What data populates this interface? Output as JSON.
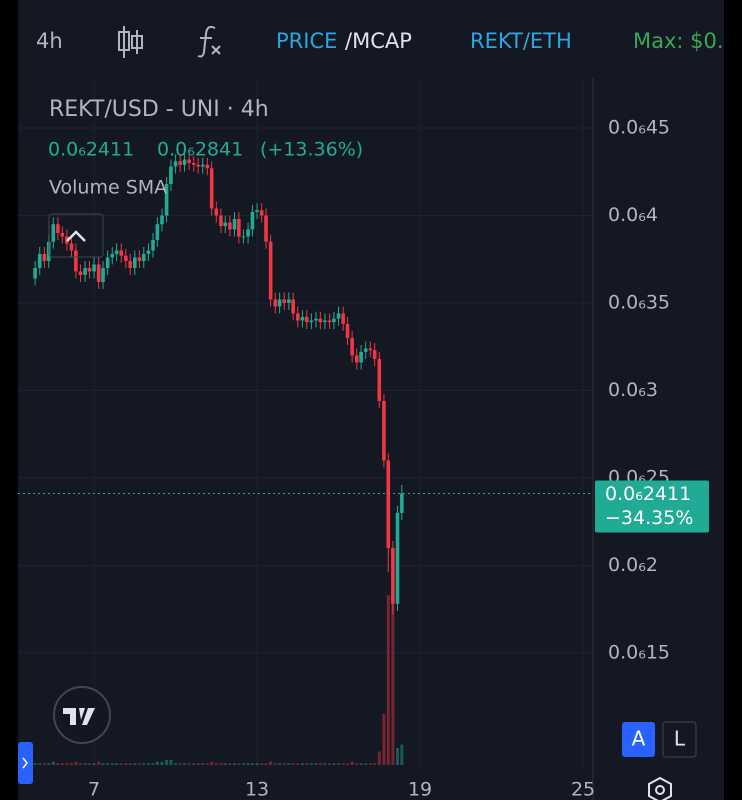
{
  "toolbar": {
    "interval": "4h",
    "price": "PRICE",
    "mcap": "/MCAP",
    "pair": "REKT/ETH",
    "max": "Max: $0."
  },
  "legend": {
    "title": "REKT/USD - UNI · 4h",
    "values": [
      "0.0₆2411",
      "0.0₆2841",
      "(+13.36%)"
    ],
    "indicator": "Volume SMA"
  },
  "buttons": {
    "auto": "A",
    "log": "L"
  },
  "chart_data": {
    "type": "candlestick",
    "grid": true,
    "up_color": "#22ab94",
    "down_color": "#f23645",
    "x": [
      4.83,
      5,
      5.17,
      5.33,
      5.5,
      5.67,
      5.83,
      6,
      6.17,
      6.33,
      6.5,
      6.67,
      6.83,
      7,
      7.17,
      7.33,
      7.5,
      7.67,
      7.83,
      8,
      8.17,
      8.33,
      8.5,
      8.67,
      8.83,
      9,
      9.17,
      9.33,
      9.5,
      9.67,
      9.83,
      10,
      10.17,
      10.33,
      10.5,
      10.67,
      10.83,
      11,
      11.17,
      11.33,
      11.5,
      11.67,
      11.83,
      12,
      12.17,
      12.33,
      12.5,
      12.67,
      12.83,
      13,
      13.17,
      13.33,
      13.5,
      13.67,
      13.83,
      14,
      14.17,
      14.33,
      14.5,
      14.67,
      14.83,
      15,
      15.17,
      15.33,
      15.5,
      15.67,
      15.83,
      16,
      16.17,
      16.33,
      16.5,
      16.67,
      16.83,
      17,
      17.17,
      17.33,
      17.5,
      17.67,
      17.83,
      18,
      18.17,
      18.33
    ],
    "open": [
      3.64e-07,
      3.7e-07,
      3.78e-07,
      3.74e-07,
      3.85e-07,
      3.95e-07,
      3.9e-07,
      3.88e-07,
      3.84e-07,
      3.8e-07,
      3.68e-07,
      3.66e-07,
      3.7e-07,
      3.68e-07,
      3.72e-07,
      3.62e-07,
      3.7e-07,
      3.76e-07,
      3.78e-07,
      3.8e-07,
      3.77e-07,
      3.74e-07,
      3.7e-07,
      3.76e-07,
      3.74e-07,
      3.78e-07,
      3.8e-07,
      3.86e-07,
      3.95e-07,
      4e-07,
      4.18e-07,
      4.28e-07,
      4.31e-07,
      4.29e-07,
      4.32e-07,
      4.3e-07,
      4.29e-07,
      4.28e-07,
      4.29e-07,
      4.27e-07,
      4.04e-07,
      4e-07,
      3.94e-07,
      3.96e-07,
      3.92e-07,
      3.98e-07,
      3.88e-07,
      3.88e-07,
      3.92e-07,
      4.02e-07,
      4.03e-07,
      4e-07,
      3.85e-07,
      3.52e-07,
      3.48e-07,
      3.52e-07,
      3.5e-07,
      3.52e-07,
      3.44e-07,
      3.4e-07,
      3.42e-07,
      3.39e-07,
      3.4e-07,
      3.41e-07,
      3.39e-07,
      3.4e-07,
      3.39e-07,
      3.41e-07,
      3.44e-07,
      3.38e-07,
      3.3e-07,
      3.2e-07,
      3.16e-07,
      3.22e-07,
      3.24e-07,
      3.23e-07,
      3.18e-07,
      2.94e-07,
      2.6e-07,
      2.1e-07,
      1.78e-07,
      2.3e-07
    ],
    "high": [
      3.74e-07,
      3.82e-07,
      3.82e-07,
      3.89e-07,
      3.99e-07,
      3.99e-07,
      3.94e-07,
      3.92e-07,
      3.88e-07,
      3.84e-07,
      3.72e-07,
      3.74e-07,
      3.74e-07,
      3.76e-07,
      3.76e-07,
      3.74e-07,
      3.8e-07,
      3.82e-07,
      3.84e-07,
      3.84e-07,
      3.81e-07,
      3.78e-07,
      3.8e-07,
      3.8e-07,
      3.82e-07,
      3.84e-07,
      3.9e-07,
      3.99e-07,
      4.04e-07,
      4.22e-07,
      4.32e-07,
      4.35e-07,
      4.35e-07,
      4.36e-07,
      4.36e-07,
      4.34e-07,
      4.33e-07,
      4.33e-07,
      4.33e-07,
      4.31e-07,
      4.08e-07,
      4.04e-07,
      4e-07,
      4e-07,
      4.02e-07,
      4.02e-07,
      3.92e-07,
      3.96e-07,
      4.06e-07,
      4.07e-07,
      4.07e-07,
      4.04e-07,
      3.89e-07,
      3.56e-07,
      3.56e-07,
      3.56e-07,
      3.56e-07,
      3.56e-07,
      3.48e-07,
      3.46e-07,
      3.46e-07,
      3.44e-07,
      3.45e-07,
      3.45e-07,
      3.44e-07,
      3.44e-07,
      3.45e-07,
      3.48e-07,
      3.48e-07,
      3.42e-07,
      3.34e-07,
      3.24e-07,
      3.26e-07,
      3.28e-07,
      3.28e-07,
      3.27e-07,
      3.22e-07,
      2.98e-07,
      2.64e-07,
      2.14e-07,
      2.34e-07,
      2.46e-07
    ],
    "low": [
      3.6e-07,
      3.66e-07,
      3.7e-07,
      3.7e-07,
      3.81e-07,
      3.86e-07,
      3.84e-07,
      3.8e-07,
      3.76e-07,
      3.64e-07,
      3.62e-07,
      3.62e-07,
      3.64e-07,
      3.64e-07,
      3.58e-07,
      3.58e-07,
      3.66e-07,
      3.72e-07,
      3.74e-07,
      3.73e-07,
      3.7e-07,
      3.66e-07,
      3.66e-07,
      3.7e-07,
      3.7e-07,
      3.74e-07,
      3.76e-07,
      3.82e-07,
      3.91e-07,
      3.96e-07,
      4.14e-07,
      4.24e-07,
      4.25e-07,
      4.25e-07,
      4.26e-07,
      4.25e-07,
      4.24e-07,
      4.24e-07,
      4.23e-07,
      4e-07,
      3.96e-07,
      3.9e-07,
      3.9e-07,
      3.88e-07,
      3.88e-07,
      3.84e-07,
      3.84e-07,
      3.84e-07,
      3.88e-07,
      3.98e-07,
      3.96e-07,
      3.81e-07,
      3.48e-07,
      3.44e-07,
      3.44e-07,
      3.46e-07,
      3.46e-07,
      3.4e-07,
      3.36e-07,
      3.36e-07,
      3.35e-07,
      3.35e-07,
      3.36e-07,
      3.35e-07,
      3.35e-07,
      3.35e-07,
      3.35e-07,
      3.37e-07,
      3.34e-07,
      3.26e-07,
      3.16e-07,
      3.12e-07,
      3.12e-07,
      3.18e-07,
      3.19e-07,
      3.14e-07,
      2.9e-07,
      2.56e-07,
      1.96e-07,
      1.72e-07,
      1.74e-07,
      2.26e-07
    ],
    "close": [
      3.7e-07,
      3.78e-07,
      3.74e-07,
      3.85e-07,
      3.95e-07,
      3.9e-07,
      3.88e-07,
      3.84e-07,
      3.8e-07,
      3.68e-07,
      3.66e-07,
      3.7e-07,
      3.68e-07,
      3.72e-07,
      3.62e-07,
      3.7e-07,
      3.76e-07,
      3.78e-07,
      3.8e-07,
      3.77e-07,
      3.74e-07,
      3.7e-07,
      3.76e-07,
      3.74e-07,
      3.78e-07,
      3.8e-07,
      3.86e-07,
      3.95e-07,
      4e-07,
      4.18e-07,
      4.28e-07,
      4.31e-07,
      4.29e-07,
      4.32e-07,
      4.3e-07,
      4.29e-07,
      4.28e-07,
      4.29e-07,
      4.27e-07,
      4.04e-07,
      4e-07,
      3.94e-07,
      3.96e-07,
      3.92e-07,
      3.98e-07,
      3.88e-07,
      3.88e-07,
      3.92e-07,
      4.02e-07,
      4.03e-07,
      4e-07,
      3.85e-07,
      3.52e-07,
      3.48e-07,
      3.52e-07,
      3.5e-07,
      3.52e-07,
      3.44e-07,
      3.4e-07,
      3.42e-07,
      3.39e-07,
      3.4e-07,
      3.41e-07,
      3.39e-07,
      3.4e-07,
      3.39e-07,
      3.41e-07,
      3.44e-07,
      3.38e-07,
      3.3e-07,
      3.2e-07,
      3.16e-07,
      3.22e-07,
      3.24e-07,
      3.23e-07,
      3.18e-07,
      2.94e-07,
      2.6e-07,
      2.1e-07,
      1.78e-07,
      2.3e-07,
      2.411e-07
    ],
    "volume": [
      1,
      1,
      1,
      1,
      2,
      1,
      1,
      1,
      1,
      2,
      1,
      1,
      1,
      1,
      2,
      1,
      1,
      1,
      1,
      1,
      1,
      1,
      1,
      1,
      1,
      1,
      1,
      2,
      2,
      3,
      3,
      1,
      1,
      1,
      1,
      1,
      1,
      1,
      1,
      2,
      1,
      1,
      1,
      1,
      1,
      1,
      1,
      1,
      1,
      1,
      1,
      1,
      2,
      1,
      1,
      1,
      1,
      1,
      1,
      1,
      1,
      1,
      1,
      1,
      1,
      1,
      1,
      1,
      1,
      1,
      2,
      1,
      1,
      1,
      1,
      1,
      8,
      30,
      100,
      95,
      10,
      12
    ],
    "xlim": [
      4.2,
      25.33
    ],
    "xticks": [
      7,
      13,
      19,
      25
    ],
    "ylim": [
      8.3e-08,
      4.786e-07
    ],
    "yticks": [
      {
        "value": 4.5e-07,
        "label": "0.0₆45"
      },
      {
        "value": 4e-07,
        "label": "0.0₆4"
      },
      {
        "value": 3.5e-07,
        "label": "0.0₆35"
      },
      {
        "value": 3e-07,
        "label": "0.0₆3"
      },
      {
        "value": 2.5e-07,
        "label": "0.0₆25"
      },
      {
        "value": 2e-07,
        "label": "0.0₆2"
      },
      {
        "value": 1.5e-07,
        "label": "0.0₆15"
      }
    ],
    "last_price": {
      "value": 2.411e-07,
      "label": "0.0₆2411"
    },
    "last_change_label": "−34.35%"
  }
}
